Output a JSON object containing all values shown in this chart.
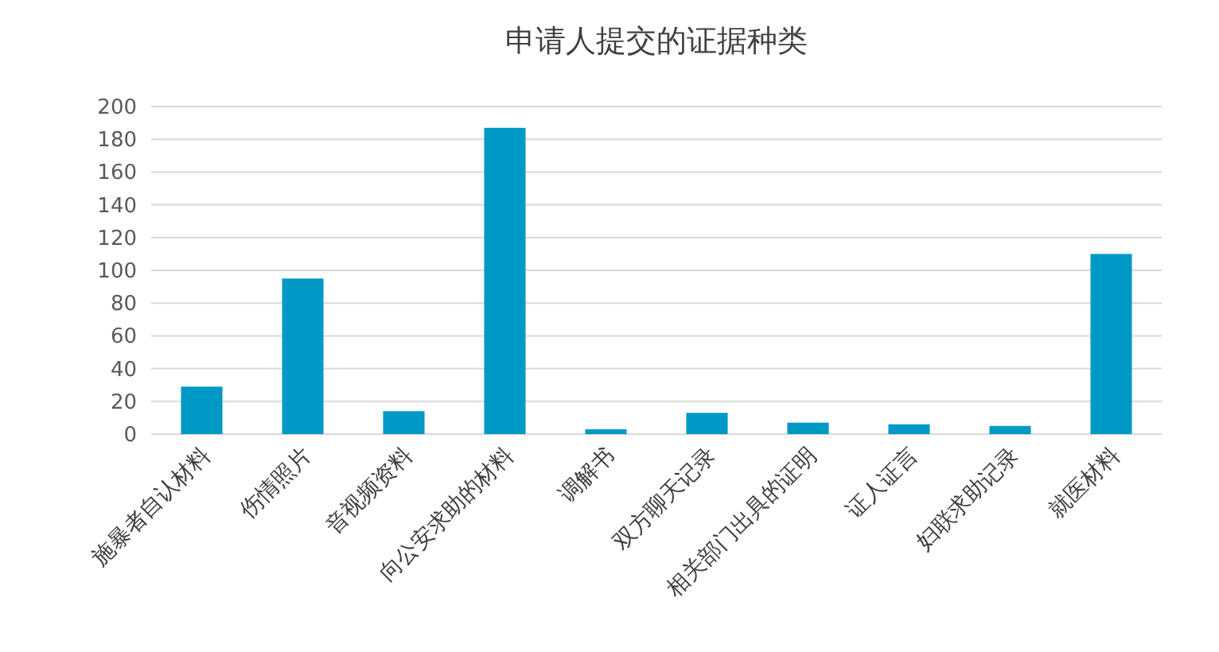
{
  "chart_data": {
    "type": "bar",
    "title": "申请人提交的证据种类",
    "categories": [
      "施暴者自认材料",
      "伤情照片",
      "音视频资料",
      "向公安求助的材料",
      "调解书",
      "双方聊天记录",
      "相关部门出具的证明",
      "证人证言",
      "妇联求助记录",
      "就医材料"
    ],
    "values": [
      29,
      95,
      14,
      187,
      3,
      13,
      7,
      6,
      5,
      110
    ],
    "color": "#0099c6",
    "ylim": [
      0,
      200
    ],
    "yticks": [
      0,
      20,
      40,
      60,
      80,
      100,
      120,
      140,
      160,
      180,
      200
    ],
    "grid": "y"
  }
}
